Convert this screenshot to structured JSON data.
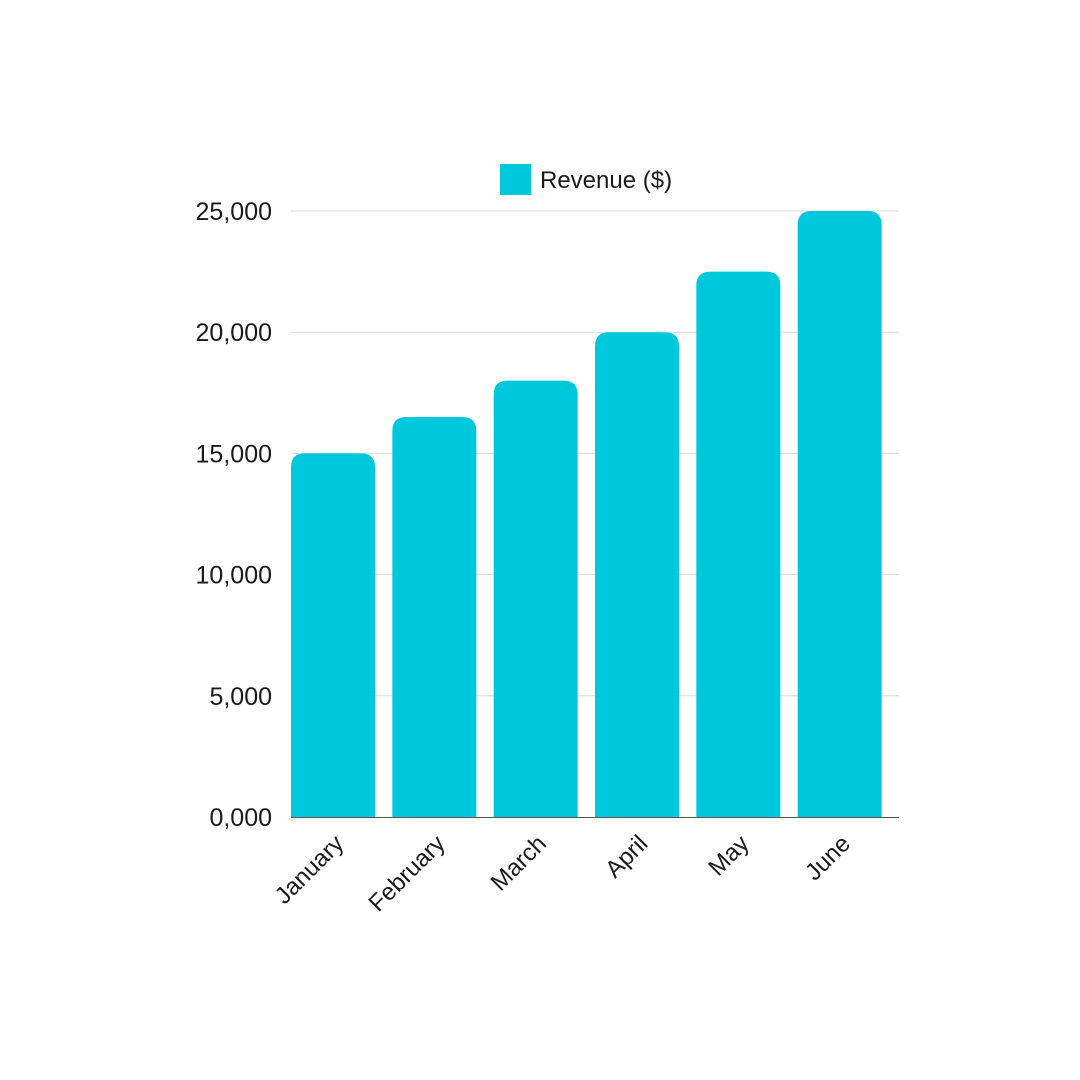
{
  "chart_data": {
    "type": "bar",
    "categories": [
      "January",
      "February",
      "March",
      "April",
      "May",
      "June"
    ],
    "series": [
      {
        "name": "Revenue ($)",
        "values": [
          15000,
          16500,
          18000,
          20000,
          22500,
          25000
        ],
        "color": "#00C8DC"
      }
    ],
    "y_ticks": [
      {
        "value": 0,
        "label": "0,000"
      },
      {
        "value": 5000,
        "label": "5,000"
      },
      {
        "value": 10000,
        "label": "10,000"
      },
      {
        "value": 15000,
        "label": "15,000"
      },
      {
        "value": 20000,
        "label": "20,000"
      },
      {
        "value": 25000,
        "label": "25,000"
      }
    ],
    "ylim": [
      0,
      25000
    ],
    "grid": true,
    "legend_position": "top-center"
  }
}
